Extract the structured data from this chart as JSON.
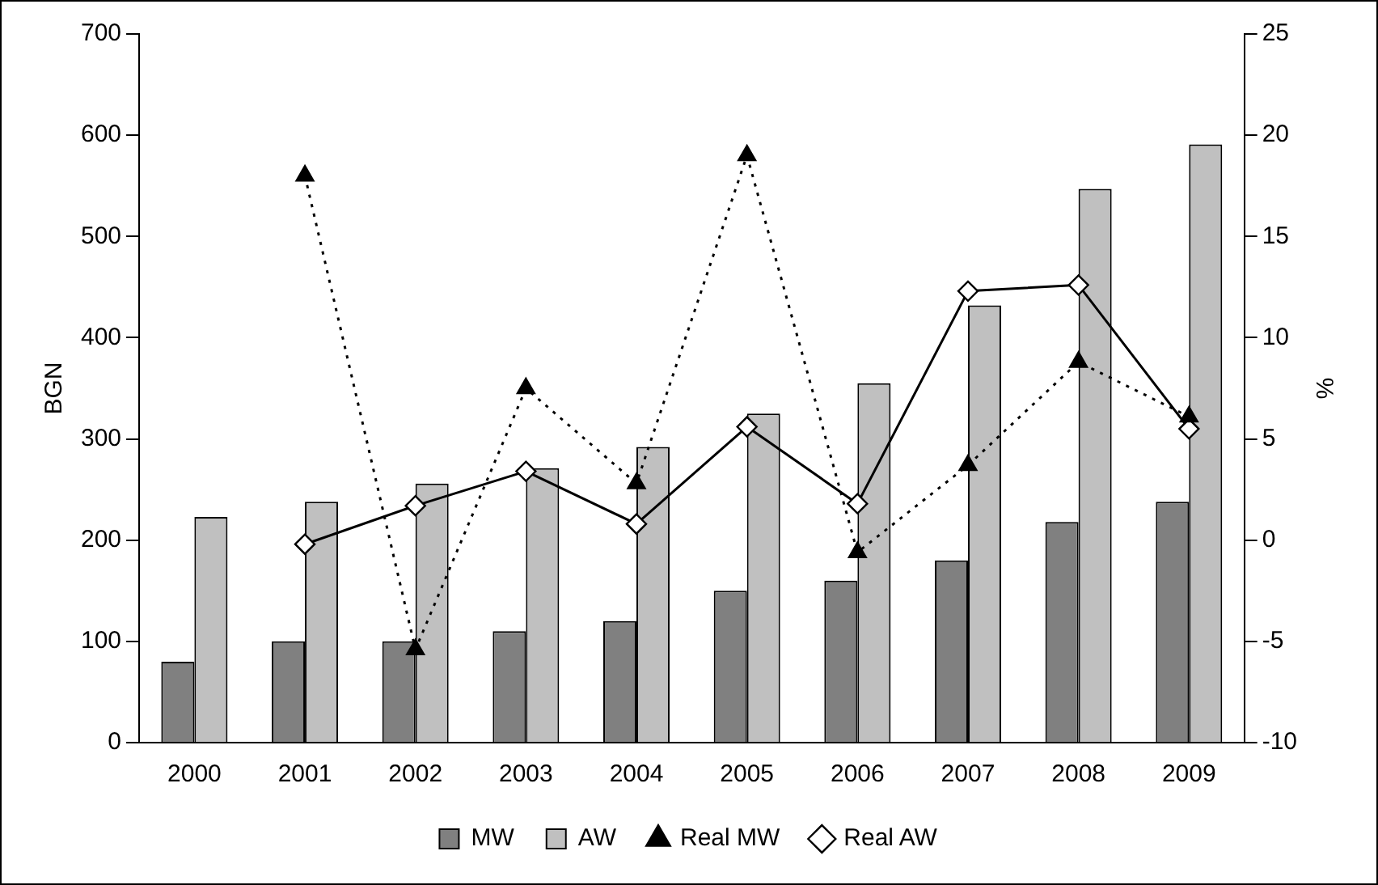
{
  "chart_data": {
    "type": "bar",
    "ylabel": "BGN",
    "y2label": "%",
    "categories": [
      "2000",
      "2001",
      "2002",
      "2003",
      "2004",
      "2005",
      "2006",
      "2007",
      "2008",
      "2009"
    ],
    "series": [
      {
        "name": "MW",
        "color": "#808080",
        "values": [
          80,
          100,
          100,
          110,
          120,
          150,
          160,
          180,
          218,
          238
        ]
      },
      {
        "name": "AW",
        "color": "#c0c0c0",
        "values": [
          223,
          238,
          256,
          271,
          292,
          325,
          355,
          432,
          547,
          591
        ]
      },
      {
        "name": "Real MW",
        "type": "line",
        "axis": "y2",
        "color": "#000000",
        "marker": "triangle",
        "line_style": "dotted",
        "values": [
          null,
          18,
          -5.4,
          7.5,
          2.8,
          19,
          -0.6,
          3.7,
          8.8,
          6.1
        ]
      },
      {
        "name": "Real AW",
        "type": "line",
        "axis": "y2",
        "color": "#000000",
        "marker": "diamond",
        "line_style": "solid",
        "values": [
          null,
          -0.2,
          1.7,
          3.4,
          0.8,
          5.6,
          1.8,
          12.3,
          12.6,
          5.5
        ]
      }
    ],
    "ylim": [
      0,
      700
    ],
    "yticks": [
      0,
      100,
      200,
      300,
      400,
      500,
      600,
      700
    ],
    "y2lim": [
      -10,
      25
    ],
    "y2ticks": [
      -10,
      -5,
      0,
      5,
      10,
      15,
      20,
      25
    ],
    "grid": false,
    "legend": "bottom"
  }
}
